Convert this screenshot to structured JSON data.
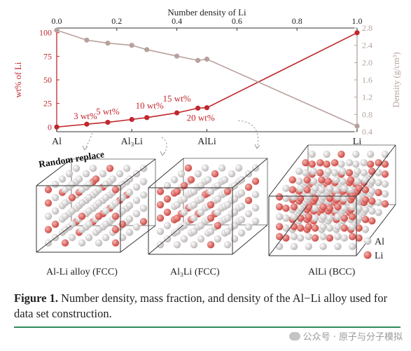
{
  "chart_data": {
    "type": "line",
    "top_axis_label": "Number density of Li",
    "top_ticks": [
      0.0,
      0.2,
      0.4,
      0.6,
      0.8,
      1.0
    ],
    "top_tick_labels": [
      "0.0",
      "0.2",
      "0.4",
      "0.6",
      "0.8",
      "1.0"
    ],
    "xlim": [
      0,
      1
    ],
    "left_axis_label": "wt% of Li",
    "left_ticks": [
      0,
      25,
      50,
      75,
      100
    ],
    "left_ylim": [
      -5,
      105
    ],
    "right_axis_label": "Density (g/cm³)",
    "right_ticks": [
      0.4,
      0.8,
      1.2,
      1.6,
      2.0,
      2.4,
      2.8
    ],
    "right_tick_labels": [
      "0.4",
      "0.8",
      "1.2",
      "1.6",
      "2.0",
      "2.4",
      "2.8"
    ],
    "right_ylim": [
      0.4,
      2.8
    ],
    "bottom_tick_positions": [
      0.0,
      0.25,
      0.5,
      1.0
    ],
    "bottom_tick_labels": [
      "Al",
      "Al₃Li",
      "AlLi",
      "Li"
    ],
    "series": [
      {
        "name": "wt% of Li",
        "axis": "left",
        "color": "#c1272d",
        "x": [
          0.0,
          0.1,
          0.17,
          0.25,
          0.3,
          0.4,
          0.47,
          0.5,
          1.0
        ],
        "y": [
          0,
          3,
          5,
          8,
          10,
          15,
          20,
          20.5,
          100
        ]
      },
      {
        "name": "Density (g/cm³)",
        "axis": "right",
        "color": "#b7a19d",
        "x": [
          0.0,
          0.1,
          0.17,
          0.25,
          0.3,
          0.4,
          0.47,
          0.5,
          1.0
        ],
        "y": [
          2.75,
          2.52,
          2.45,
          2.4,
          2.3,
          2.15,
          2.05,
          2.08,
          0.53
        ]
      }
    ],
    "annotations": [
      {
        "text": "3 wt%",
        "x": 0.1
      },
      {
        "text": "5 wt%",
        "x": 0.17
      },
      {
        "text": "10 wt%",
        "x": 0.3
      },
      {
        "text": "15 wt%",
        "x": 0.4
      },
      {
        "text": "20 wt%",
        "x": 0.47
      }
    ],
    "grid": false
  },
  "illustration": {
    "random_replace": "Random replace",
    "crystals": [
      "Al-Li alloy (FCC)",
      "Al₃Li (FCC)",
      "AlLi (BCC)"
    ],
    "legend": [
      {
        "label": "Al",
        "color": "#d9d4d4"
      },
      {
        "label": "Li",
        "color": "#d9534f"
      }
    ]
  },
  "caption": {
    "prefix": "Figure 1.",
    "text": "Number density, mass fraction, and density of the Al−Li alloy used for data set construction."
  },
  "watermark": "公众号 · 原子与分子模拟",
  "colors": {
    "wt_series": "#c1272d",
    "density_series": "#b7a19d",
    "rule": "#2e8b57"
  }
}
